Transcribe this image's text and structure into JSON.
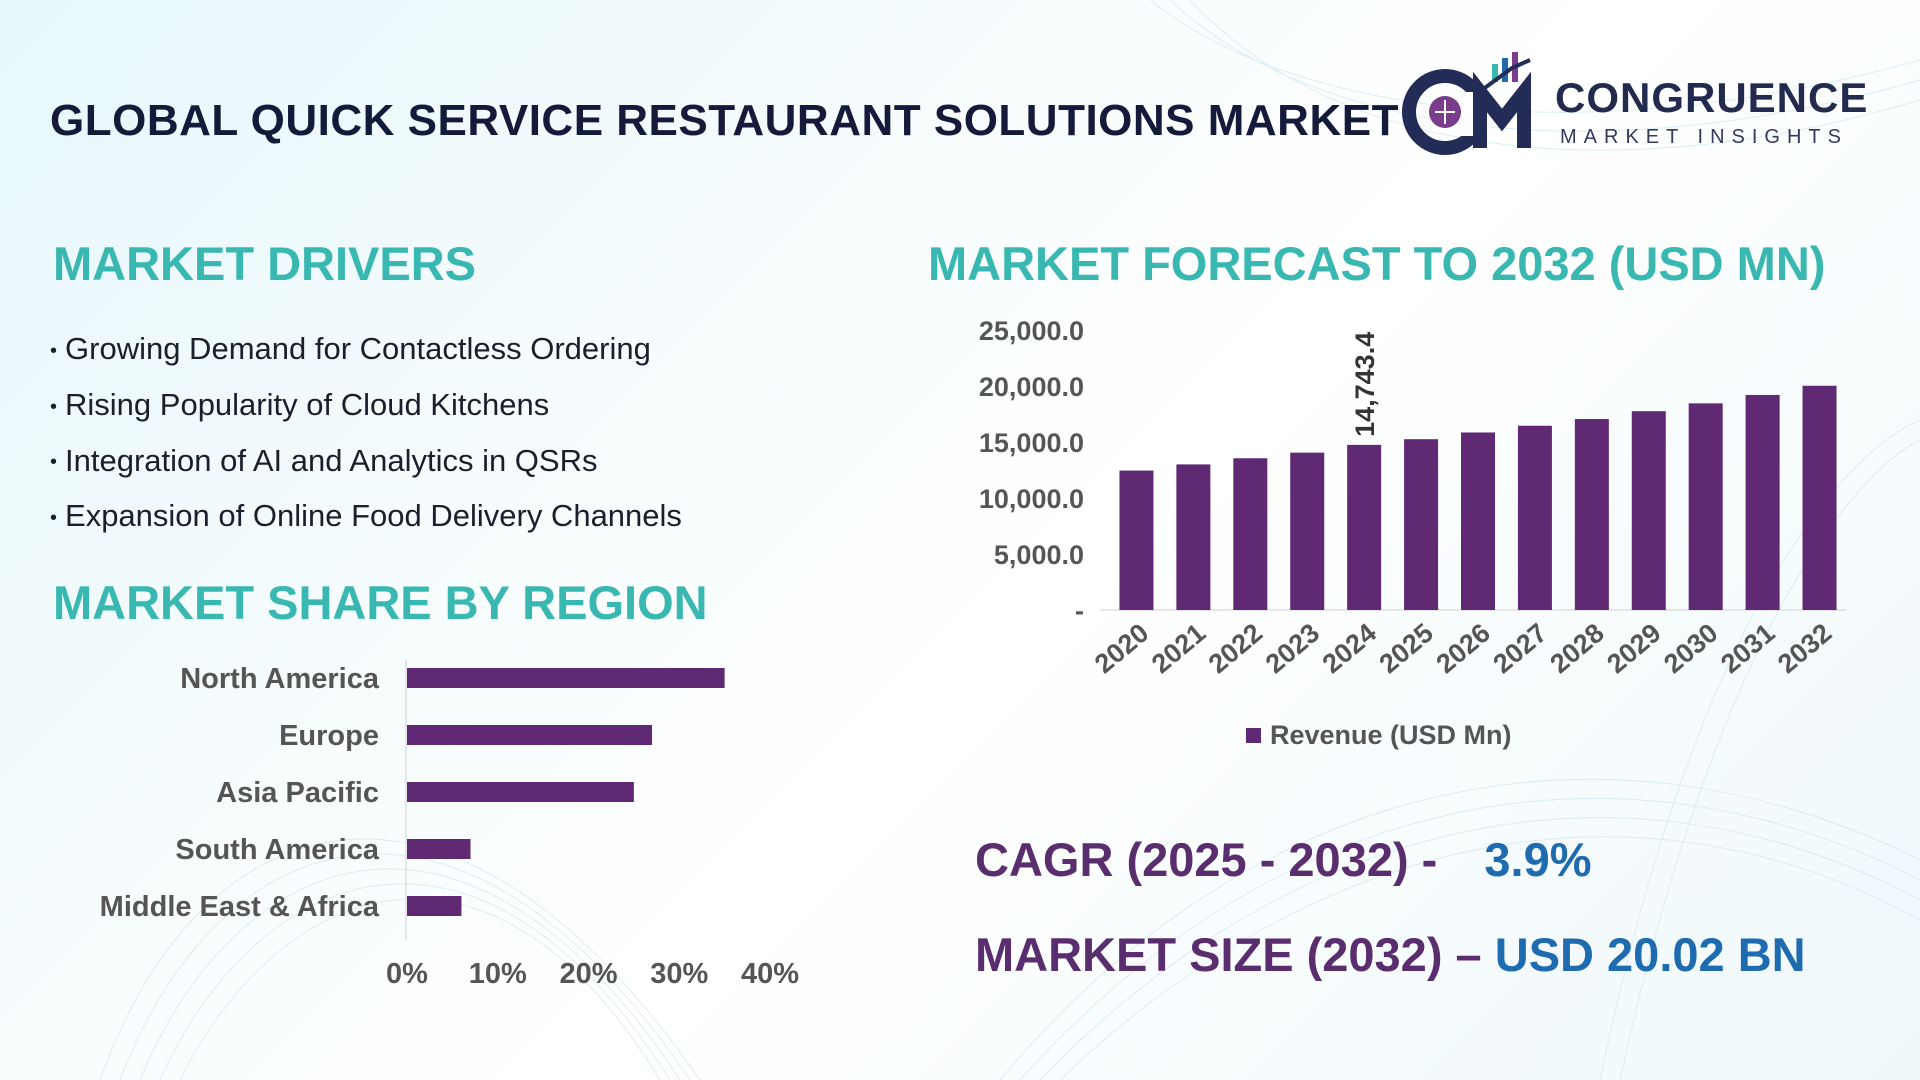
{
  "header": {
    "title": "GLOBAL QUICK SERVICE RESTAURANT SOLUTIONS MARKET",
    "logo_name": "CONGRUENCE",
    "logo_tagline": "MARKET INSIGHTS"
  },
  "drivers": {
    "heading": "MARKET DRIVERS",
    "items": [
      "Growing Demand for Contactless Ordering",
      "Rising Popularity of Cloud Kitchens",
      "Integration of AI and Analytics in QSRs",
      "Expansion of Online Food Delivery Channels"
    ]
  },
  "forecast": {
    "heading": "MARKET FORECAST TO 2032 (USD MN)"
  },
  "region": {
    "heading": "MARKET SHARE BY REGION"
  },
  "stats": {
    "cagr_label": "CAGR (2025 - 2032) -",
    "cagr_value": "3.9%",
    "size_label": "MARKET SIZE (2032) –",
    "size_value": "USD 20.02 BN"
  },
  "colors": {
    "bar": "#5f2a73",
    "heading": "#39b8b1",
    "stat_label": "#5a2d6e",
    "stat_value": "#1e6bb0"
  },
  "chart_data": [
    {
      "type": "bar",
      "categories": [
        "2020",
        "2021",
        "2022",
        "2023",
        "2024",
        "2025",
        "2026",
        "2027",
        "2028",
        "2029",
        "2030",
        "2031",
        "2032"
      ],
      "series": [
        {
          "name": "Revenue (USD Mn)",
          "values": [
            12450,
            13000,
            13550,
            14050,
            14743.4,
            15250,
            15850,
            16450,
            17050,
            17750,
            18450,
            19200,
            20020
          ]
        }
      ],
      "data_labels": [
        {
          "category": "2024",
          "text": "14,743.4"
        }
      ],
      "yticks": [
        "-",
        "5,000.0",
        "10,000.0",
        "15,000.0",
        "20,000.0",
        "25,000.0"
      ],
      "ylim": [
        0,
        25000
      ],
      "legend": "bottom"
    },
    {
      "type": "bar",
      "orientation": "horizontal",
      "categories": [
        "North America",
        "Europe",
        "Asia Pacific",
        "South America",
        "Middle East & Africa"
      ],
      "values": [
        35,
        27,
        25,
        7,
        6
      ],
      "xticks": [
        "0%",
        "10%",
        "20%",
        "30%",
        "40%"
      ],
      "xlim": [
        0,
        40
      ]
    }
  ]
}
